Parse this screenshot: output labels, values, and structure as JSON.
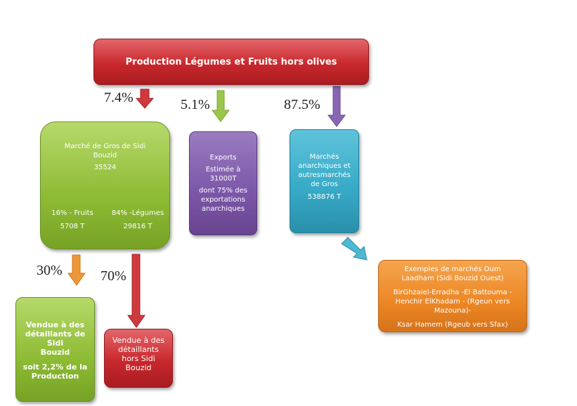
{
  "title": "Production Légumes et Fruits hors olives",
  "branches": {
    "left_pct": "7.4%",
    "mid_pct": "5.1%",
    "right_pct": "87.5%"
  },
  "marche_gros": {
    "line1": "Marché de Gros de Sidi",
    "line2": "Bouzid",
    "value": "35524",
    "fruits_label": "16% - Fruits",
    "fruits_value": "5708 T",
    "legumes_label": "84% -Légumes",
    "legumes_value": "29816 T"
  },
  "exports": {
    "title": "Exports",
    "line1": "Estimée à",
    "line2": "31000T",
    "line3": "dont 75% des",
    "line4": "exportations",
    "line5": "anarchiques"
  },
  "anarchiques": {
    "line1": "Marchés",
    "line2": "anarchiques et",
    "line3": "autresmarchés",
    "line4": "de Gros",
    "value": "538876 T"
  },
  "exemples": {
    "line1": "Exemples de marchés Oum",
    "line2": "Laadham (Sidi Bouzid Ouest)",
    "line3": "BirGhzaiel-Erradha -El Battouma -",
    "line4": "Henchir ElKhadam - (Rgeun vers",
    "line5": "Mazouna)-",
    "line6": "Ksar Hamem (Rgeub vers Sfax)"
  },
  "distribution": {
    "local_pct": "30%",
    "outside_pct": "70%",
    "local_line1": "Vendue à des",
    "local_line2": "détaillants de Sidi",
    "local_line3": "Bouzid",
    "local_line4": "soit 2,2% de la",
    "local_line5": "Production",
    "outside_line1": "Vendue à des",
    "outside_line2": "détaillants",
    "outside_line3": "hors Sidi",
    "outside_line4": "Bouzid"
  },
  "colors": {
    "red": "#c8282d",
    "green": "#8dbb33",
    "purple": "#7b56a8",
    "cyan": "#36a9c6",
    "orange": "#ec8624"
  }
}
